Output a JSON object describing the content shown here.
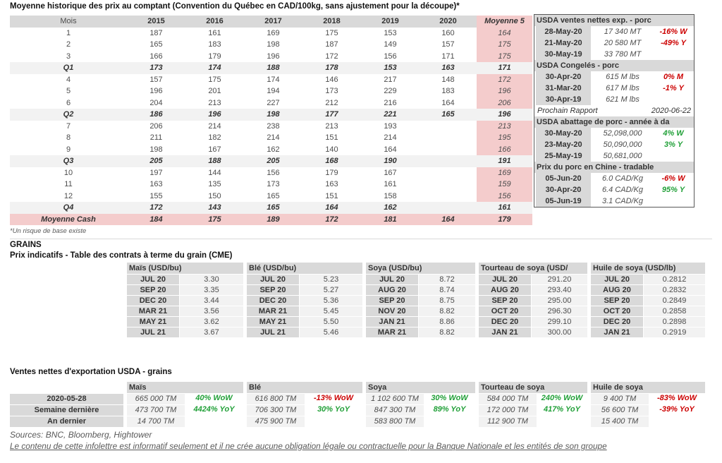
{
  "header": {
    "title": "Moyenne historique des prix au comptant (Convention du Québec en CAD/100kg, sans ajustement pour la découpe)*"
  },
  "colors": {
    "header_grey": "#d9d9d9",
    "zebra_grey": "#f2f2f2",
    "highlight_pink": "#f4cccc",
    "positive_green": "#21a038",
    "negative_red": "#cc0000"
  },
  "price_table": {
    "columns": [
      "Mois",
      "2015",
      "2016",
      "2017",
      "2018",
      "2019",
      "2020",
      "Moyenne 5"
    ],
    "rows": [
      {
        "label": "1",
        "type": "month",
        "values": [
          "187",
          "161",
          "169",
          "175",
          "153",
          "160",
          "164"
        ]
      },
      {
        "label": "2",
        "type": "month",
        "values": [
          "165",
          "183",
          "198",
          "187",
          "149",
          "157",
          "175"
        ]
      },
      {
        "label": "3",
        "type": "month",
        "values": [
          "166",
          "179",
          "196",
          "172",
          "156",
          "171",
          "175"
        ]
      },
      {
        "label": "Q1",
        "type": "quarter",
        "values": [
          "173",
          "174",
          "188",
          "178",
          "153",
          "163",
          "171"
        ]
      },
      {
        "label": "4",
        "type": "month",
        "values": [
          "157",
          "175",
          "174",
          "146",
          "217",
          "148",
          "172"
        ]
      },
      {
        "label": "5",
        "type": "month",
        "values": [
          "196",
          "201",
          "194",
          "173",
          "229",
          "183",
          "196"
        ]
      },
      {
        "label": "6",
        "type": "month",
        "values": [
          "204",
          "213",
          "227",
          "212",
          "216",
          "164",
          "206"
        ]
      },
      {
        "label": "Q2",
        "type": "quarter",
        "values": [
          "186",
          "196",
          "198",
          "177",
          "221",
          "165",
          "196"
        ]
      },
      {
        "label": "7",
        "type": "month",
        "values": [
          "206",
          "214",
          "238",
          "213",
          "193",
          "",
          "213"
        ]
      },
      {
        "label": "8",
        "type": "month",
        "values": [
          "211",
          "182",
          "214",
          "151",
          "214",
          "",
          "195"
        ]
      },
      {
        "label": "9",
        "type": "month",
        "values": [
          "198",
          "167",
          "162",
          "140",
          "164",
          "",
          "166"
        ]
      },
      {
        "label": "Q3",
        "type": "quarter",
        "values": [
          "205",
          "188",
          "205",
          "168",
          "190",
          "",
          "191"
        ]
      },
      {
        "label": "10",
        "type": "month",
        "values": [
          "197",
          "144",
          "156",
          "179",
          "167",
          "",
          "169"
        ]
      },
      {
        "label": "11",
        "type": "month",
        "values": [
          "163",
          "135",
          "173",
          "163",
          "161",
          "",
          "159"
        ]
      },
      {
        "label": "12",
        "type": "month",
        "values": [
          "155",
          "150",
          "165",
          "151",
          "158",
          "",
          "156"
        ]
      },
      {
        "label": "Q4",
        "type": "quarter",
        "values": [
          "172",
          "143",
          "165",
          "164",
          "162",
          "",
          "161"
        ]
      },
      {
        "label": "Moyenne Cash",
        "type": "cash",
        "values": [
          "184",
          "175",
          "189",
          "172",
          "181",
          "164",
          "179"
        ]
      }
    ],
    "footnote": "*Un risque de base existe"
  },
  "sidebar": {
    "rows": [
      {
        "type": "header",
        "text": "USDA ventes nettes exp. - porc"
      },
      {
        "type": "data",
        "date": "28-May-20",
        "value": "17 340  MT",
        "pct": "-16% W",
        "color": "red"
      },
      {
        "type": "data",
        "date": "21-May-20",
        "value": "20 580  MT",
        "pct": "-49% Y",
        "color": "red"
      },
      {
        "type": "data",
        "date": "30-May-19",
        "value": "33 780  MT",
        "pct": "",
        "color": ""
      },
      {
        "type": "header",
        "text": "USDA Congelés - porc"
      },
      {
        "type": "data",
        "date": "30-Apr-20",
        "value": "615 M lbs",
        "pct": "0% M",
        "color": "red"
      },
      {
        "type": "data",
        "date": "31-Mar-20",
        "value": "617 M lbs",
        "pct": "-1% Y",
        "color": "red"
      },
      {
        "type": "data",
        "date": "30-Apr-19",
        "value": "621 M lbs",
        "pct": "",
        "color": ""
      },
      {
        "type": "report",
        "label": "Prochain Rapport",
        "date": "2020-06-22"
      },
      {
        "type": "header",
        "text": "USDA abattage de porc - année à da"
      },
      {
        "type": "data",
        "date": "30-May-20",
        "value": "52,098,000",
        "pct": "4% W",
        "color": "green"
      },
      {
        "type": "data",
        "date": "23-May-20",
        "value": "50,090,000",
        "pct": "3% Y",
        "color": "green"
      },
      {
        "type": "data",
        "date": "25-May-19",
        "value": "50,681,000",
        "pct": "",
        "color": ""
      },
      {
        "type": "header",
        "text": "Prix du porc en Chine - tradable"
      },
      {
        "type": "data",
        "date": "05-Jun-20",
        "value": "6.0 CAD/Kg",
        "pct": "-6% W",
        "color": "red"
      },
      {
        "type": "data",
        "date": "30-Apr-20",
        "value": "6.4 CAD/Kg",
        "pct": "95% Y",
        "color": "green"
      },
      {
        "type": "data",
        "date": "05-Jun-19",
        "value": "3.1 CAD/Kg",
        "pct": "",
        "color": ""
      }
    ]
  },
  "grains": {
    "section_title": "GRAINS",
    "subtitle": "Prix indicatifs - Table des contrats à terme du grain (CME)",
    "futures_tables": [
      {
        "header": "Maïs (USD/bu)",
        "rows": [
          [
            "JUL 20",
            "3.30"
          ],
          [
            "SEP 20",
            "3.35"
          ],
          [
            "DEC 20",
            "3.44"
          ],
          [
            "MAR 21",
            "3.56"
          ],
          [
            "MAY 21",
            "3.62"
          ],
          [
            "JUL 21",
            "3.67"
          ]
        ]
      },
      {
        "header": "Blé (USD/bu)",
        "rows": [
          [
            "JUL 20",
            "5.23"
          ],
          [
            "SEP 20",
            "5.27"
          ],
          [
            "DEC 20",
            "5.36"
          ],
          [
            "MAR 21",
            "5.45"
          ],
          [
            "MAY 21",
            "5.50"
          ],
          [
            "JUL 21",
            "5.46"
          ]
        ]
      },
      {
        "header": "Soya (USD/bu)",
        "rows": [
          [
            "JUL 20",
            "8.72"
          ],
          [
            "AUG 20",
            "8.74"
          ],
          [
            "SEP 20",
            "8.75"
          ],
          [
            "NOV 20",
            "8.82"
          ],
          [
            "JAN 21",
            "8.86"
          ],
          [
            "MAR 21",
            "8.82"
          ]
        ]
      },
      {
        "header": "Tourteau de soya (USD/",
        "rows": [
          [
            "JUL 20",
            "291.20"
          ],
          [
            "AUG 20",
            "293.40"
          ],
          [
            "SEP 20",
            "295.00"
          ],
          [
            "OCT 20",
            "296.30"
          ],
          [
            "DEC 20",
            "299.10"
          ],
          [
            "JAN 21",
            "300.00"
          ]
        ]
      },
      {
        "header": "Huile de soya (USD/lb)",
        "rows": [
          [
            "JUL 20",
            "0.2812"
          ],
          [
            "AUG 20",
            "0.2832"
          ],
          [
            "SEP 20",
            "0.2849"
          ],
          [
            "OCT 20",
            "0.2858"
          ],
          [
            "DEC 20",
            "0.2898"
          ],
          [
            "JAN 21",
            "0.2919"
          ]
        ]
      }
    ]
  },
  "exports": {
    "title": "Ventes nettes d'exportation USDA - grains",
    "row_labels": [
      "2020-05-28",
      "Semaine dernière",
      "An dernier"
    ],
    "tables": [
      {
        "header": "Maïs",
        "rows": [
          {
            "v": "665 000 TM",
            "p": "40% WoW",
            "c": "green"
          },
          {
            "v": "473 700 TM",
            "p": "4424% YoY",
            "c": "green"
          },
          {
            "v": "14 700 TM",
            "p": "",
            "c": ""
          }
        ]
      },
      {
        "header": "Blé",
        "rows": [
          {
            "v": "616 800 TM",
            "p": "-13% WoW",
            "c": "red"
          },
          {
            "v": "706 300 TM",
            "p": "30% YoY",
            "c": "green"
          },
          {
            "v": "475 900 TM",
            "p": "",
            "c": ""
          }
        ]
      },
      {
        "header": "Soya",
        "rows": [
          {
            "v": "1 102 600 TM",
            "p": "30% WoW",
            "c": "green"
          },
          {
            "v": "847 300 TM",
            "p": "89% YoY",
            "c": "green"
          },
          {
            "v": "583 800 TM",
            "p": "",
            "c": ""
          }
        ]
      },
      {
        "header": "Tourteau de soya",
        "rows": [
          {
            "v": "584 000 TM",
            "p": "240% WoW",
            "c": "green"
          },
          {
            "v": "172 000 TM",
            "p": "417% YoY",
            "c": "green"
          },
          {
            "v": "112 900 TM",
            "p": "",
            "c": ""
          }
        ]
      },
      {
        "header": "Huile de soya",
        "rows": [
          {
            "v": "9 400 TM",
            "p": "-83% WoW",
            "c": "red"
          },
          {
            "v": "56 600 TM",
            "p": "-39% YoY",
            "c": "red"
          },
          {
            "v": "15 400 TM",
            "p": "",
            "c": ""
          }
        ]
      }
    ]
  },
  "footer": {
    "sources": "Sources: BNC, Bloomberg, Hightower",
    "disclaimer": "Le contenu de cette infolettre est informatif seulement et il ne crée aucune obligation légale ou contractuelle pour la Banque Nationale et les entités de son groupe"
  }
}
